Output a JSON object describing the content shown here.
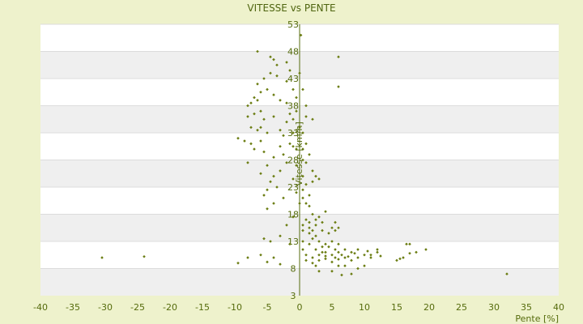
{
  "chart_data": {
    "type": "scatter",
    "title": "VITESSE vs PENTE",
    "xlabel": "Pente [%]",
    "ylabel": "Vitesse [km/h]",
    "xlim": [
      -40,
      40
    ],
    "ylim": [
      3,
      53
    ],
    "x_ticks": [
      "-40",
      "-35",
      "-30",
      "-25",
      "-20",
      "-15",
      "-10",
      "-5",
      "0",
      "5",
      "10",
      "15",
      "20",
      "25",
      "30",
      "35",
      "40"
    ],
    "y_ticks": [
      "53",
      "48",
      "43",
      "38",
      "33",
      "28",
      "23",
      "18",
      "13",
      "8",
      "3"
    ],
    "grid": true,
    "colors": {
      "marker": "#6b7d12",
      "band_alt": "#efefef",
      "plot_bg": "#ffffff",
      "page_bg": "#eef2cc",
      "axis": "#556b0c"
    },
    "series": [
      {
        "points": [
          [
            -30.5,
            10.0
          ],
          [
            -24,
            10.2
          ],
          [
            -9.5,
            9.0
          ],
          [
            -8,
            10.0
          ],
          [
            -6,
            10.5
          ],
          [
            -4,
            10.0
          ],
          [
            -5,
            9.2
          ],
          [
            -3,
            8.8
          ],
          [
            -4.5,
            13.0
          ],
          [
            -5.5,
            13.5
          ],
          [
            -3,
            14.0
          ],
          [
            -2,
            16.0
          ],
          [
            -1,
            17.5
          ],
          [
            -1.5,
            12.5
          ],
          [
            -8,
            27.5
          ],
          [
            -5.5,
            21.5
          ],
          [
            -5,
            22.5
          ],
          [
            -4.5,
            24.0
          ],
          [
            -3.5,
            23.0
          ],
          [
            -5,
            19.0
          ],
          [
            -4,
            20.0
          ],
          [
            -2.5,
            21.0
          ],
          [
            -6,
            25.5
          ],
          [
            -7,
            30.0
          ],
          [
            -5.5,
            29.5
          ],
          [
            -4,
            28.5
          ],
          [
            -3,
            30.5
          ],
          [
            -2.5,
            32.5
          ],
          [
            -1.5,
            31.0
          ],
          [
            -0.5,
            30.0
          ],
          [
            -1,
            33.0
          ],
          [
            -9.5,
            32.0
          ],
          [
            -8.5,
            31.5
          ],
          [
            -7.5,
            31.0
          ],
          [
            -6.5,
            33.5
          ],
          [
            -5,
            33.0
          ],
          [
            -6,
            34.0
          ],
          [
            -7.5,
            34.0
          ],
          [
            -8,
            36.0
          ],
          [
            -7,
            36.5
          ],
          [
            -6,
            37.0
          ],
          [
            -4,
            36.0
          ],
          [
            -5.5,
            35.5
          ],
          [
            -2,
            35.0
          ],
          [
            -1,
            35.5
          ],
          [
            0,
            34.0
          ],
          [
            -8,
            38.0
          ],
          [
            -7,
            39.5
          ],
          [
            -6,
            40.5
          ],
          [
            -5,
            41.0
          ],
          [
            -3,
            39.0
          ],
          [
            -4,
            40.0
          ],
          [
            -2,
            38.5
          ],
          [
            -6.5,
            42.0
          ],
          [
            -5.5,
            43.0
          ],
          [
            -4.5,
            44.0
          ],
          [
            -3.5,
            43.5
          ],
          [
            -2,
            42.5
          ],
          [
            -1,
            41.0
          ],
          [
            -6.5,
            48.0
          ],
          [
            -4.5,
            47.0
          ],
          [
            -3.5,
            45.5
          ],
          [
            -4,
            46.5
          ],
          [
            -2,
            46.0
          ],
          [
            -1.5,
            44.5
          ],
          [
            0,
            44.0
          ],
          [
            0.2,
            51.0
          ],
          [
            -1.5,
            36.5
          ],
          [
            -1,
            30.5
          ],
          [
            0.5,
            30.0
          ],
          [
            1,
            31.0
          ],
          [
            0.5,
            33.0
          ],
          [
            -0.5,
            27.0
          ],
          [
            0.5,
            25.0
          ],
          [
            -1,
            24.5
          ],
          [
            0.5,
            21.0
          ],
          [
            1,
            20.0
          ],
          [
            1.5,
            21.5
          ],
          [
            0.5,
            22.5
          ],
          [
            1,
            23.5
          ],
          [
            -0.5,
            22.0
          ],
          [
            0,
            20.0
          ],
          [
            1.5,
            19.5
          ],
          [
            2,
            24.0
          ],
          [
            1,
            17.0
          ],
          [
            1.5,
            16.5
          ],
          [
            2.5,
            16.0
          ],
          [
            3,
            17.5
          ],
          [
            2,
            18.0
          ],
          [
            4,
            18.5
          ],
          [
            3.5,
            16.5
          ],
          [
            0.5,
            16.0
          ],
          [
            0.5,
            15.0
          ],
          [
            1.5,
            14.5
          ],
          [
            2.5,
            14.0
          ],
          [
            3.5,
            15.0
          ],
          [
            4.5,
            14.5
          ],
          [
            5,
            15.5
          ],
          [
            5.5,
            15.0
          ],
          [
            6,
            15.5
          ],
          [
            5.5,
            16.5
          ],
          [
            0.5,
            13.0
          ],
          [
            1.5,
            12.5
          ],
          [
            2,
            13.5
          ],
          [
            3,
            13.0
          ],
          [
            4,
            12.5
          ],
          [
            5,
            13.0
          ],
          [
            6,
            12.5
          ],
          [
            2.5,
            11.5
          ],
          [
            3.5,
            11.0
          ],
          [
            0.5,
            11.5
          ],
          [
            1,
            10.5
          ],
          [
            2,
            10.0
          ],
          [
            3,
            10.5
          ],
          [
            4,
            11.0
          ],
          [
            5,
            10.5
          ],
          [
            6,
            11.0
          ],
          [
            7,
            11.5
          ],
          [
            8,
            11.0
          ],
          [
            9,
            11.5
          ],
          [
            1,
            9.5
          ],
          [
            2,
            9.0
          ],
          [
            3,
            9.5
          ],
          [
            4,
            9.8
          ],
          [
            5,
            9.2
          ],
          [
            6,
            9.7
          ],
          [
            7,
            10.0
          ],
          [
            8,
            9.5
          ],
          [
            9,
            10.0
          ],
          [
            10,
            10.5
          ],
          [
            11,
            10.5
          ],
          [
            12,
            11.0
          ],
          [
            4,
            10.3
          ],
          [
            5.5,
            10.0
          ],
          [
            6.5,
            10.5
          ],
          [
            7.5,
            10.2
          ],
          [
            2.5,
            8.5
          ],
          [
            6,
            8.5
          ],
          [
            7,
            8.5
          ],
          [
            9,
            8.0
          ],
          [
            3,
            7.5
          ],
          [
            6.5,
            6.8
          ],
          [
            5,
            7.5
          ],
          [
            8,
            7.0
          ],
          [
            10,
            8.5
          ],
          [
            11,
            10.0
          ],
          [
            15,
            9.5
          ],
          [
            16,
            10.0
          ],
          [
            17,
            10.8
          ],
          [
            18,
            11.0
          ],
          [
            19.5,
            11.5
          ],
          [
            15.5,
            9.8
          ],
          [
            16.5,
            12.5
          ],
          [
            17,
            12.5
          ],
          [
            12,
            11.5
          ],
          [
            32,
            7.0
          ],
          [
            6,
            47.0
          ],
          [
            6,
            41.5
          ],
          [
            3,
            24.5
          ],
          [
            2,
            26.0
          ],
          [
            1,
            27.5
          ],
          [
            1.5,
            29.0
          ],
          [
            0.5,
            28.0
          ],
          [
            2.5,
            25.0
          ],
          [
            1,
            38.0
          ],
          [
            0.5,
            41.0
          ],
          [
            -0.5,
            39.5
          ],
          [
            1,
            36.0
          ],
          [
            2,
            35.5
          ],
          [
            -0.5,
            37.0
          ],
          [
            -2,
            27.5
          ],
          [
            -3,
            26.0
          ],
          [
            -4,
            25.0
          ],
          [
            -5,
            27.0
          ],
          [
            -2.5,
            29.0
          ],
          [
            -6,
            31.5
          ],
          [
            -3,
            33.5
          ],
          [
            -7.5,
            38.5
          ],
          [
            -6.5,
            39.0
          ],
          [
            3.5,
            12.0
          ],
          [
            4.5,
            12.0
          ],
          [
            5.5,
            11.5
          ],
          [
            8.5,
            10.8
          ],
          [
            10.5,
            11.2
          ],
          [
            12.5,
            10.3
          ],
          [
            1.5,
            15.5
          ],
          [
            2,
            15.0
          ],
          [
            2.5,
            17.0
          ]
        ]
      }
    ]
  }
}
